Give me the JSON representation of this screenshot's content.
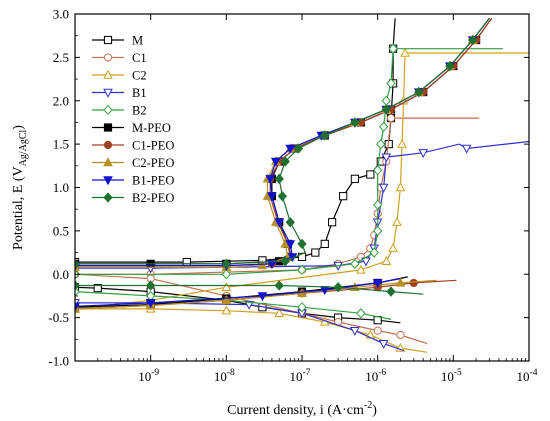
{
  "chart_data": {
    "type": "line",
    "xscale": "log",
    "xlim": [
      1e-10,
      0.0001
    ],
    "ylim": [
      -1.0,
      3.0
    ],
    "xlabel": "Current density, i (A·cm",
    "xlabel_sup": "-2",
    "xlabel_end": ")",
    "ylabel": "Potential, E (V",
    "ylabel_sub": "Ag/AgCl",
    "ylabel_end": ")",
    "x_ticks": [
      {
        "value": 1e-09,
        "base": "10",
        "exp": "-9"
      },
      {
        "value": 1e-08,
        "base": "10",
        "exp": "-8"
      },
      {
        "value": 1e-07,
        "base": "10",
        "exp": "-7"
      },
      {
        "value": 1e-06,
        "base": "10",
        "exp": "-6"
      },
      {
        "value": 1e-05,
        "base": "10",
        "exp": "-5"
      },
      {
        "value": 0.0001,
        "base": "10",
        "exp": "-4"
      }
    ],
    "y_ticks": [
      "-1.0",
      "-0.5",
      "0.0",
      "0.5",
      "1.0",
      "1.5",
      "2.0",
      "2.5",
      "3.0"
    ],
    "legend_position": "top-left",
    "series": [
      {
        "name": "M",
        "color": "#000000",
        "marker": "square-open",
        "points": [
          [
            1.7e-06,
            2.95
          ],
          [
            1.6e-06,
            2.6
          ],
          [
            1.6e-06,
            2.2
          ],
          [
            1.5e-06,
            1.8
          ],
          [
            1.4e-06,
            1.5
          ],
          [
            1.1e-06,
            1.3
          ],
          [
            8e-07,
            1.15
          ],
          [
            5e-07,
            1.1
          ],
          [
            3.5e-07,
            0.9
          ],
          [
            2.5e-07,
            0.6
          ],
          [
            2e-07,
            0.35
          ],
          [
            1.5e-07,
            0.25
          ],
          [
            1e-07,
            0.2
          ],
          [
            3e-08,
            0.16
          ],
          [
            3e-09,
            0.14
          ],
          [
            1e-10,
            0.14
          ]
        ]
      },
      {
        "name": "M",
        "color": "#000000",
        "marker": "square-open",
        "points": [
          [
            2e-06,
            -0.56
          ],
          [
            1e-06,
            -0.53
          ],
          [
            3e-07,
            -0.5
          ],
          [
            1e-07,
            -0.45
          ],
          [
            3e-08,
            -0.38
          ],
          [
            1e-08,
            -0.3
          ],
          [
            1e-09,
            -0.2
          ],
          [
            2e-10,
            -0.16
          ],
          [
            1e-10,
            -0.15
          ]
        ]
      },
      {
        "name": "C1",
        "color": "#c07050",
        "marker": "circle-open",
        "points": [
          [
            2.2e-05,
            1.8
          ],
          [
            1.5e-06,
            1.8
          ],
          [
            1.3e-06,
            1.3
          ],
          [
            1.1e-06,
            1.0
          ],
          [
            1e-06,
            0.7
          ],
          [
            9e-07,
            0.45
          ],
          [
            8e-07,
            0.3
          ],
          [
            6e-07,
            0.2
          ],
          [
            3e-07,
            0.12
          ],
          [
            1e-07,
            0.05
          ],
          [
            1e-09,
            0.0
          ],
          [
            1e-10,
            0.0
          ]
        ]
      },
      {
        "name": "C1",
        "color": "#c07050",
        "marker": "circle-open",
        "points": [
          [
            4.5e-06,
            -0.8
          ],
          [
            2e-06,
            -0.7
          ],
          [
            1e-06,
            -0.65
          ],
          [
            3e-07,
            -0.55
          ],
          [
            1e-07,
            -0.45
          ],
          [
            1e-08,
            -0.25
          ],
          [
            1e-09,
            -0.05
          ],
          [
            1e-10,
            0.0
          ]
        ]
      },
      {
        "name": "C2",
        "color": "#d0a020",
        "marker": "triangle-up-open",
        "points": [
          [
            0.0001,
            2.55
          ],
          [
            2.3e-06,
            2.55
          ],
          [
            2.2e-06,
            2.0
          ],
          [
            2.1e-06,
            1.5
          ],
          [
            2e-06,
            1.0
          ],
          [
            1.8e-06,
            0.6
          ],
          [
            1.6e-06,
            0.3
          ],
          [
            1.3e-06,
            0.15
          ],
          [
            6e-07,
            0.05
          ],
          [
            1e-08,
            -0.15
          ],
          [
            1e-09,
            -0.3
          ],
          [
            1e-10,
            -0.4
          ]
        ]
      },
      {
        "name": "C2",
        "color": "#d0a020",
        "marker": "triangle-up-open",
        "points": [
          [
            4.5e-06,
            -0.9
          ],
          [
            2e-06,
            -0.85
          ],
          [
            8e-07,
            -0.7
          ],
          [
            2e-07,
            -0.55
          ],
          [
            5e-08,
            -0.45
          ],
          [
            1e-08,
            -0.42
          ],
          [
            1e-09,
            -0.4
          ],
          [
            1e-10,
            -0.4
          ]
        ]
      },
      {
        "name": "B1",
        "color": "#3030d0",
        "marker": "triangle-down-open",
        "points": [
          [
            0.0001,
            1.53
          ],
          [
            1.5e-05,
            1.45
          ],
          [
            1.2e-05,
            1.5
          ],
          [
            4e-06,
            1.4
          ],
          [
            1.3e-06,
            1.35
          ],
          [
            1.2e-06,
            1.0
          ],
          [
            1e-06,
            0.6
          ],
          [
            9e-07,
            0.3
          ],
          [
            7e-07,
            0.15
          ],
          [
            3e-07,
            0.1
          ],
          [
            1e-08,
            0.08
          ],
          [
            1e-09,
            0.07
          ],
          [
            1e-10,
            0.07
          ]
        ]
      },
      {
        "name": "B1",
        "color": "#3030d0",
        "marker": "triangle-down-open",
        "points": [
          [
            2.2e-06,
            -0.88
          ],
          [
            1.2e-06,
            -0.8
          ],
          [
            5e-07,
            -0.65
          ],
          [
            1e-07,
            -0.45
          ],
          [
            2e-08,
            -0.35
          ],
          [
            1e-09,
            -0.33
          ],
          [
            1e-10,
            -0.33
          ]
        ]
      },
      {
        "name": "B2",
        "color": "#30a040",
        "marker": "diamond-open",
        "points": [
          [
            4.5e-05,
            2.6
          ],
          [
            1.6e-06,
            2.6
          ],
          [
            1.5e-06,
            2.2
          ],
          [
            1.3e-06,
            2.0
          ],
          [
            1.2e-06,
            1.7
          ],
          [
            1.1e-06,
            1.5
          ],
          [
            1e-06,
            1.2
          ],
          [
            1e-06,
            0.8
          ],
          [
            1e-06,
            0.5
          ],
          [
            9e-07,
            0.25
          ],
          [
            5e-07,
            0.12
          ],
          [
            1e-07,
            0.05
          ],
          [
            1e-08,
            0.0
          ],
          [
            1e-10,
            0.0
          ]
        ]
      },
      {
        "name": "B2",
        "color": "#30a040",
        "marker": "diamond-open",
        "points": [
          [
            1.5e-06,
            -0.52
          ],
          [
            6e-07,
            -0.45
          ],
          [
            1e-07,
            -0.38
          ],
          [
            1e-08,
            -0.3
          ],
          [
            1e-09,
            -0.25
          ],
          [
            1e-10,
            -0.2
          ]
        ]
      },
      {
        "name": "M-PEO",
        "color": "#000000",
        "marker": "square-filled",
        "points": [
          [
            3.2e-05,
            2.95
          ],
          [
            2e-05,
            2.7
          ],
          [
            1e-05,
            2.4
          ],
          [
            4e-06,
            2.1
          ],
          [
            1.5e-06,
            1.9
          ],
          [
            6e-07,
            1.75
          ],
          [
            2e-07,
            1.6
          ],
          [
            8e-08,
            1.45
          ],
          [
            5e-08,
            1.3
          ],
          [
            4e-08,
            1.1
          ],
          [
            4e-08,
            0.9
          ],
          [
            5e-08,
            0.6
          ],
          [
            6.5e-08,
            0.35
          ],
          [
            7e-08,
            0.25
          ],
          [
            5e-08,
            0.15
          ],
          [
            1e-08,
            0.12
          ],
          [
            1e-09,
            0.12
          ],
          [
            1e-10,
            0.12
          ]
        ]
      },
      {
        "name": "M-PEO",
        "color": "#000000",
        "marker": "square-filled",
        "points": [
          [
            2.5e-06,
            -0.03
          ],
          [
            1e-06,
            -0.1
          ],
          [
            1e-07,
            -0.2
          ],
          [
            1e-08,
            -0.28
          ],
          [
            1e-09,
            -0.35
          ],
          [
            1e-10,
            -0.38
          ]
        ]
      },
      {
        "name": "C1-PEO",
        "color": "#a04020",
        "marker": "circle-filled",
        "points": [
          [
            3.2e-05,
            2.95
          ],
          [
            2e-05,
            2.7
          ],
          [
            1e-05,
            2.4
          ],
          [
            4e-06,
            2.1
          ],
          [
            1.5e-06,
            1.9
          ],
          [
            6e-07,
            1.75
          ],
          [
            2e-07,
            1.6
          ],
          [
            8e-08,
            1.45
          ],
          [
            5e-08,
            1.3
          ],
          [
            3.8e-08,
            1.1
          ],
          [
            3.8e-08,
            0.9
          ],
          [
            4.8e-08,
            0.6
          ],
          [
            6.5e-08,
            0.35
          ],
          [
            7e-08,
            0.2
          ],
          [
            4e-08,
            0.12
          ],
          [
            1e-08,
            0.1
          ],
          [
            1e-10,
            0.1
          ]
        ]
      },
      {
        "name": "C1-PEO",
        "color": "#a04020",
        "marker": "circle-filled",
        "points": [
          [
            1.1e-05,
            -0.07
          ],
          [
            3e-06,
            -0.1
          ],
          [
            1e-06,
            -0.15
          ],
          [
            1e-07,
            -0.22
          ],
          [
            1e-08,
            -0.3
          ],
          [
            1e-09,
            -0.36
          ],
          [
            1e-10,
            -0.4
          ]
        ]
      },
      {
        "name": "C2-PEO",
        "color": "#b89020",
        "marker": "triangle-up-filled",
        "points": [
          [
            3e-05,
            2.95
          ],
          [
            1.8e-05,
            2.7
          ],
          [
            9e-06,
            2.4
          ],
          [
            3.5e-06,
            2.1
          ],
          [
            1.3e-06,
            1.9
          ],
          [
            5e-07,
            1.75
          ],
          [
            1.8e-07,
            1.6
          ],
          [
            7e-08,
            1.45
          ],
          [
            4.5e-08,
            1.3
          ],
          [
            3.5e-08,
            1.1
          ],
          [
            3.5e-08,
            0.9
          ],
          [
            4.5e-08,
            0.6
          ],
          [
            6e-08,
            0.35
          ],
          [
            6.5e-08,
            0.2
          ],
          [
            3e-08,
            0.1
          ],
          [
            1e-08,
            0.08
          ],
          [
            1e-10,
            0.08
          ]
        ]
      },
      {
        "name": "C2-PEO",
        "color": "#b89020",
        "marker": "triangle-up-filled",
        "points": [
          [
            6e-06,
            -0.07
          ],
          [
            2e-06,
            -0.1
          ],
          [
            5e-07,
            -0.15
          ],
          [
            1e-07,
            -0.22
          ],
          [
            1e-08,
            -0.3
          ],
          [
            1e-09,
            -0.36
          ],
          [
            1e-10,
            -0.4
          ]
        ]
      },
      {
        "name": "B1-PEO",
        "color": "#1010d0",
        "marker": "triangle-down-filled",
        "points": [
          [
            3e-05,
            2.95
          ],
          [
            1.8e-05,
            2.7
          ],
          [
            9e-06,
            2.4
          ],
          [
            3.5e-06,
            2.1
          ],
          [
            1.3e-06,
            1.9
          ],
          [
            5e-07,
            1.75
          ],
          [
            1.8e-07,
            1.6
          ],
          [
            7e-08,
            1.45
          ],
          [
            4.5e-08,
            1.3
          ],
          [
            3.8e-08,
            1.1
          ],
          [
            4e-08,
            0.9
          ],
          [
            5e-08,
            0.6
          ],
          [
            7e-08,
            0.35
          ],
          [
            7.5e-08,
            0.2
          ],
          [
            4e-08,
            0.12
          ],
          [
            1e-08,
            0.1
          ],
          [
            1e-10,
            0.1
          ]
        ]
      },
      {
        "name": "B1-PEO",
        "color": "#1010d0",
        "marker": "triangle-down-filled",
        "points": [
          [
            2e-06,
            -0.05
          ],
          [
            1e-06,
            -0.1
          ],
          [
            2e-07,
            -0.18
          ],
          [
            3e-08,
            -0.25
          ],
          [
            1e-09,
            -0.33
          ],
          [
            1e-10,
            -0.37
          ]
        ]
      },
      {
        "name": "B2-PEO",
        "color": "#207030",
        "marker": "diamond-filled",
        "points": [
          [
            3e-05,
            2.95
          ],
          [
            1.8e-05,
            2.7
          ],
          [
            9e-06,
            2.4
          ],
          [
            3.5e-06,
            2.1
          ],
          [
            1.3e-06,
            1.9
          ],
          [
            5e-07,
            1.75
          ],
          [
            2e-07,
            1.6
          ],
          [
            9e-08,
            1.45
          ],
          [
            6e-08,
            1.3
          ],
          [
            5e-08,
            1.1
          ],
          [
            5.5e-08,
            0.9
          ],
          [
            7e-08,
            0.6
          ],
          [
            1e-07,
            0.35
          ],
          [
            1.1e-07,
            0.25
          ],
          [
            6e-08,
            0.15
          ],
          [
            1e-08,
            0.12
          ],
          [
            1e-10,
            0.12
          ]
        ]
      },
      {
        "name": "B2-PEO",
        "color": "#207030",
        "marker": "diamond-filled",
        "points": [
          [
            4e-06,
            -0.23
          ],
          [
            1.5e-06,
            -0.2
          ],
          [
            3e-07,
            -0.15
          ],
          [
            5e-08,
            -0.13
          ],
          [
            1e-09,
            -0.13
          ],
          [
            1e-10,
            -0.13
          ]
        ]
      }
    ]
  }
}
